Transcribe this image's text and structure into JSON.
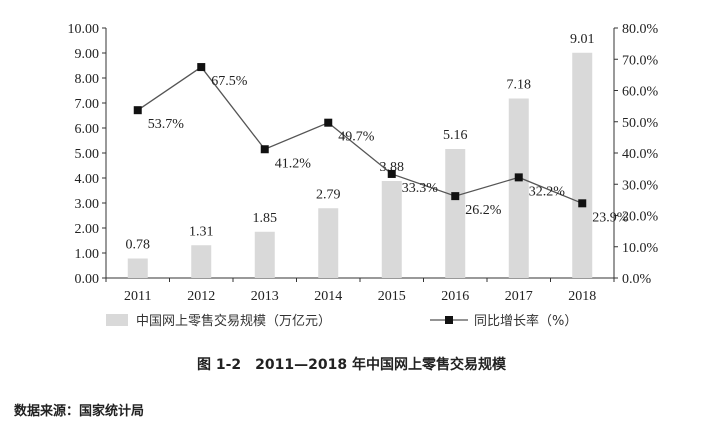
{
  "chart_data": {
    "type": "bar",
    "categories": [
      "2011",
      "2012",
      "2013",
      "2014",
      "2015",
      "2016",
      "2017",
      "2018"
    ],
    "series": [
      {
        "name": "中国网上零售交易规模（万亿元）",
        "type": "bar",
        "axis": "left",
        "color": "#d9d9d9",
        "values": [
          0.78,
          1.31,
          1.85,
          2.79,
          3.88,
          5.16,
          7.18,
          9.01
        ],
        "labels": [
          "0.78",
          "1.31",
          "1.85",
          "2.79",
          "3.88",
          "5.16",
          "7.18",
          "9.01"
        ]
      },
      {
        "name": "同比增长率（%）",
        "type": "line",
        "axis": "right",
        "color": "#555555",
        "marker": "square",
        "values": [
          53.7,
          67.5,
          41.2,
          49.7,
          33.3,
          26.2,
          32.2,
          23.9
        ],
        "labels": [
          "53.7%",
          "67.5%",
          "41.2%",
          "49.7%",
          "33.3%",
          "26.2%",
          "32.2%",
          "23.9%"
        ]
      }
    ],
    "ylim_left": [
      0,
      10
    ],
    "ylim_right": [
      0,
      80
    ],
    "left_ticks": [
      "0.00",
      "1.00",
      "2.00",
      "3.00",
      "4.00",
      "5.00",
      "6.00",
      "7.00",
      "8.00",
      "9.00",
      "10.00"
    ],
    "right_ticks": [
      "0.0%",
      "10.0%",
      "20.0%",
      "30.0%",
      "40.0%",
      "50.0%",
      "60.0%",
      "70.0%",
      "80.0%"
    ],
    "grid": false,
    "legend_position": "bottom"
  },
  "caption": "图 1-2　2011—2018 年中国网上零售交易规模",
  "source": "数据来源：国家统计局"
}
